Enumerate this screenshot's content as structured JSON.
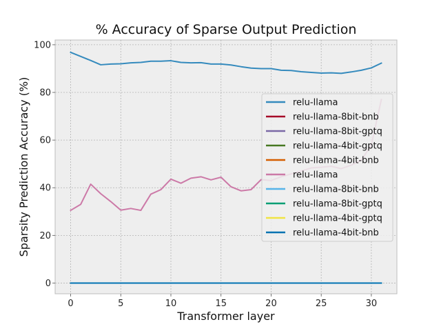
{
  "chart_data": {
    "type": "line",
    "title": "% Accuracy of Sparse Output Prediction",
    "xlabel": "Transformer layer",
    "ylabel": "Sparsity Prediction Accuracy (%)",
    "xlim": [
      -1.55,
      32.55
    ],
    "ylim": [
      -4.5,
      102
    ],
    "xticks": [
      0,
      5,
      10,
      15,
      20,
      25,
      30
    ],
    "yticks": [
      0,
      20,
      40,
      60,
      80,
      100
    ],
    "grid": true,
    "legend_position": "center-right",
    "x": [
      0,
      1,
      2,
      3,
      4,
      5,
      6,
      7,
      8,
      9,
      10,
      11,
      12,
      13,
      14,
      15,
      16,
      17,
      18,
      19,
      20,
      21,
      22,
      23,
      24,
      25,
      26,
      27,
      28,
      29,
      30,
      31
    ],
    "series": [
      {
        "name": "relu-llama",
        "color": "#348ABD",
        "values": [
          96.8,
          95.1,
          93.4,
          91.6,
          91.9,
          92.0,
          92.4,
          92.6,
          93.1,
          93.1,
          93.3,
          92.6,
          92.4,
          92.5,
          91.9,
          91.9,
          91.5,
          90.8,
          90.2,
          90.0,
          90.0,
          89.3,
          89.2,
          88.7,
          88.4,
          88.1,
          88.2,
          88.0,
          88.6,
          89.3,
          90.3,
          92.3
        ]
      },
      {
        "name": "relu-llama-8bit-bnb",
        "color": "#A60628",
        "values": [
          0,
          0,
          0,
          0,
          0,
          0,
          0,
          0,
          0,
          0,
          0,
          0,
          0,
          0,
          0,
          0,
          0,
          0,
          0,
          0,
          0,
          0,
          0,
          0,
          0,
          0,
          0,
          0,
          0,
          0,
          0,
          0
        ]
      },
      {
        "name": "relu-llama-8bit-gptq",
        "color": "#7A68A6",
        "values": [
          0,
          0,
          0,
          0,
          0,
          0,
          0,
          0,
          0,
          0,
          0,
          0,
          0,
          0,
          0,
          0,
          0,
          0,
          0,
          0,
          0,
          0,
          0,
          0,
          0,
          0,
          0,
          0,
          0,
          0,
          0,
          0
        ]
      },
      {
        "name": "relu-llama-4bit-gptq",
        "color": "#467821",
        "values": [
          0,
          0,
          0,
          0,
          0,
          0,
          0,
          0,
          0,
          0,
          0,
          0,
          0,
          0,
          0,
          0,
          0,
          0,
          0,
          0,
          0,
          0,
          0,
          0,
          0,
          0,
          0,
          0,
          0,
          0,
          0,
          0
        ]
      },
      {
        "name": "relu-llama-4bit-bnb",
        "color": "#D55E00",
        "values": [
          0,
          0,
          0,
          0,
          0,
          0,
          0,
          0,
          0,
          0,
          0,
          0,
          0,
          0,
          0,
          0,
          0,
          0,
          0,
          0,
          0,
          0,
          0,
          0,
          0,
          0,
          0,
          0,
          0,
          0,
          0,
          0
        ]
      },
      {
        "name": "relu-llama",
        "color": "#CC79A7",
        "values": [
          30.5,
          33.0,
          41.5,
          37.5,
          34.2,
          30.6,
          31.3,
          30.5,
          37.3,
          39.2,
          43.6,
          41.9,
          44.0,
          44.6,
          43.3,
          44.4,
          40.4,
          38.7,
          39.2,
          43.4,
          43.0,
          44.6,
          45.8,
          47.0,
          48.3,
          48.6,
          49.0,
          48.0,
          49.5,
          51.5,
          58.0,
          77.0
        ]
      },
      {
        "name": "relu-llama-8bit-bnb",
        "color": "#56B4E9",
        "values": [
          0,
          0,
          0,
          0,
          0,
          0,
          0,
          0,
          0,
          0,
          0,
          0,
          0,
          0,
          0,
          0,
          0,
          0,
          0,
          0,
          0,
          0,
          0,
          0,
          0,
          0,
          0,
          0,
          0,
          0,
          0,
          0
        ]
      },
      {
        "name": "relu-llama-8bit-gptq",
        "color": "#009E73",
        "values": [
          0,
          0,
          0,
          0,
          0,
          0,
          0,
          0,
          0,
          0,
          0,
          0,
          0,
          0,
          0,
          0,
          0,
          0,
          0,
          0,
          0,
          0,
          0,
          0,
          0,
          0,
          0,
          0,
          0,
          0,
          0,
          0
        ]
      },
      {
        "name": "relu-llama-4bit-gptq",
        "color": "#F0E442",
        "values": [
          0,
          0,
          0,
          0,
          0,
          0,
          0,
          0,
          0,
          0,
          0,
          0,
          0,
          0,
          0,
          0,
          0,
          0,
          0,
          0,
          0,
          0,
          0,
          0,
          0,
          0,
          0,
          0,
          0,
          0,
          0,
          0
        ]
      },
      {
        "name": "relu-llama-4bit-bnb",
        "color": "#0072B2",
        "values": [
          0,
          0,
          0,
          0,
          0,
          0,
          0,
          0,
          0,
          0,
          0,
          0,
          0,
          0,
          0,
          0,
          0,
          0,
          0,
          0,
          0,
          0,
          0,
          0,
          0,
          0,
          0,
          0,
          0,
          0,
          0,
          0
        ]
      }
    ]
  }
}
